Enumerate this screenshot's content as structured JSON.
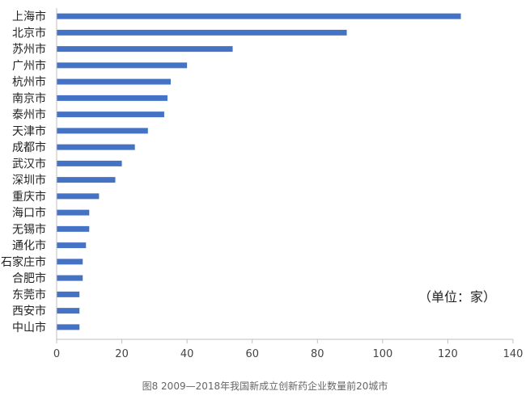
{
  "chart_data": {
    "type": "bar",
    "orientation": "horizontal",
    "categories": [
      "上海市",
      "北京市",
      "苏州市",
      "广州市",
      "杭州市",
      "南京市",
      "泰州市",
      "天津市",
      "成都市",
      "武汉市",
      "深圳市",
      "重庆市",
      "海口市",
      "无锡市",
      "通化市",
      "石家庄市",
      "合肥市",
      "东莞市",
      "西安市",
      "中山市"
    ],
    "values": [
      124,
      89,
      54,
      40,
      35,
      34,
      33,
      28,
      24,
      20,
      18,
      13,
      10,
      10,
      9,
      8,
      8,
      7,
      7,
      7
    ],
    "xlim": [
      0,
      140
    ],
    "xticks": [
      0,
      20,
      40,
      60,
      80,
      100,
      120,
      140
    ],
    "title": "",
    "xlabel": "",
    "ylabel": "",
    "grid": false,
    "legend": "none",
    "bar_color": "#4472C4",
    "annotation": "（单位：家）"
  },
  "caption": "图8   2009—2018年我国新成立创新药企业数量前20城市"
}
